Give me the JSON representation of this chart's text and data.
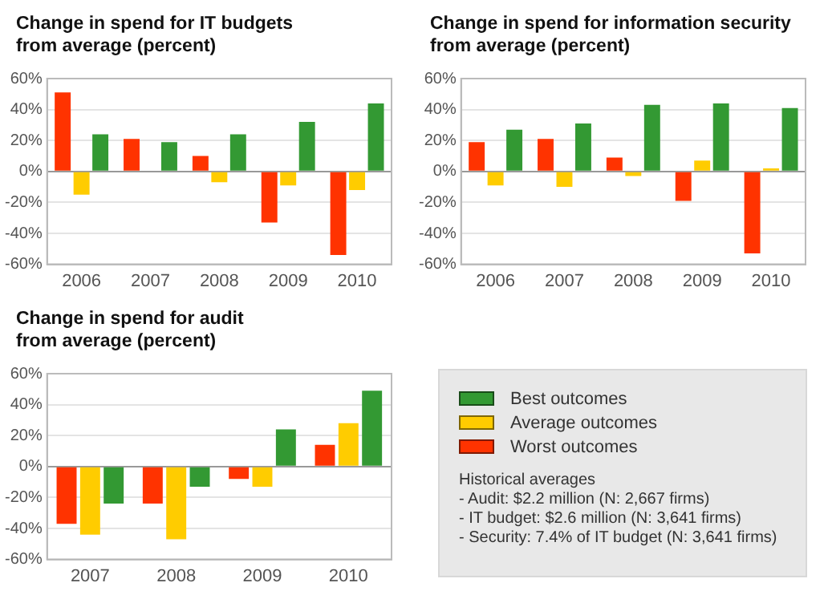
{
  "chart_data": [
    {
      "type": "bar",
      "title": "Change in spend for IT budgets\nfrom average (percent)",
      "categories": [
        "2006",
        "2007",
        "2008",
        "2009",
        "2010"
      ],
      "series": [
        {
          "color": "#ff3300",
          "values": [
            51,
            21,
            10,
            -33,
            -54
          ]
        },
        {
          "color": "#ffcc00",
          "values": [
            -15,
            0,
            -7,
            -9,
            -12
          ]
        },
        {
          "color": "#339933",
          "values": [
            24,
            19,
            24,
            32,
            44
          ]
        }
      ],
      "ylim": [
        -60,
        60
      ],
      "yticks": [
        {
          "value": -60,
          "label": "-60%"
        },
        {
          "value": -40,
          "label": "-40%"
        },
        {
          "value": -20,
          "label": "-20%"
        },
        {
          "value": 0,
          "label": "0%"
        },
        {
          "value": 20,
          "label": "20%"
        },
        {
          "value": 40,
          "label": "40%"
        },
        {
          "value": 60,
          "label": "60%"
        }
      ],
      "grid": "y",
      "legend": false
    },
    {
      "type": "bar",
      "title": "Change in spend for information security\nfrom average (percent)",
      "categories": [
        "2006",
        "2007",
        "2008",
        "2009",
        "2010"
      ],
      "series": [
        {
          "color": "#ff3300",
          "values": [
            19,
            21,
            9,
            -19,
            -53
          ]
        },
        {
          "color": "#ffcc00",
          "values": [
            -9,
            -10,
            -3,
            7,
            2
          ]
        },
        {
          "color": "#339933",
          "values": [
            27,
            31,
            43,
            44,
            41
          ]
        }
      ],
      "ylim": [
        -60,
        60
      ],
      "yticks": [
        {
          "value": -60,
          "label": "-60%"
        },
        {
          "value": -40,
          "label": "-40%"
        },
        {
          "value": -20,
          "label": "-20%"
        },
        {
          "value": 0,
          "label": "0%"
        },
        {
          "value": 20,
          "label": "20%"
        },
        {
          "value": 40,
          "label": "40%"
        },
        {
          "value": 60,
          "label": "60%"
        }
      ],
      "grid": "y",
      "legend": false
    },
    {
      "type": "bar",
      "title": "Change in spend for audit\nfrom average (percent)",
      "categories": [
        "2007",
        "2008",
        "2009",
        "2010"
      ],
      "series": [
        {
          "name": "Worst outcomes",
          "color": "#ff3300",
          "values": [
            -37,
            -24,
            -8,
            14
          ]
        },
        {
          "name": "Average outcomes",
          "color": "#ffcc00",
          "values": [
            -44,
            -47,
            -13,
            28
          ]
        },
        {
          "name": "Best outcomes",
          "color": "#339933",
          "values": [
            -24,
            -13,
            24,
            49
          ]
        }
      ],
      "ylim": [
        -60,
        60
      ],
      "yticks": [
        {
          "value": -60,
          "label": "-60%"
        },
        {
          "value": -40,
          "label": "-40%"
        },
        {
          "value": -20,
          "label": "-20%"
        },
        {
          "value": 0,
          "label": "0%"
        },
        {
          "value": 20,
          "label": "20%"
        },
        {
          "value": 40,
          "label": "40%"
        },
        {
          "value": 60,
          "label": "60%"
        }
      ],
      "grid": "y",
      "legend": "right",
      "annotations": [
        "Historical averages",
        "- Audit: $2.2 million (N: 2,667 firms)",
        "- IT budget: $2.6 million (N: 3,641 firms)",
        "- Security: 7.4% of IT budget (N: 3,641 firms)"
      ]
    }
  ]
}
